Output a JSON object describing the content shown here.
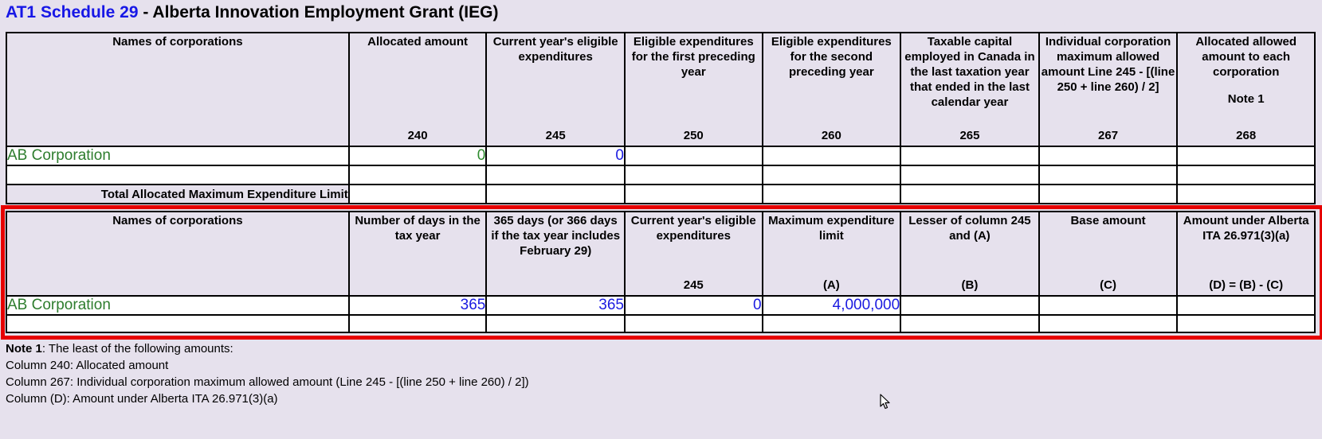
{
  "title": {
    "prefix": "AT1 Schedule 29",
    "suffix": " - Alberta Innovation Employment Grant (IEG)"
  },
  "table1": {
    "headers": [
      {
        "label": "Names of corporations",
        "code": ""
      },
      {
        "label": "Allocated amount",
        "code": "240"
      },
      {
        "label": "Current year's eligible expenditures",
        "code": "245"
      },
      {
        "label": "Eligible expenditures for the first preceding year",
        "code": "250"
      },
      {
        "label": "Eligible expenditures for the second preceding year",
        "code": "260"
      },
      {
        "label": "Taxable capital employed in Canada in the last taxation year that ended in the last calendar year",
        "code": "265"
      },
      {
        "label": "Individual corporation maximum allowed amount Line 245 - [(line 250 + line 260) / 2]",
        "code": "267"
      },
      {
        "label": "Allocated allowed amount to each corporation",
        "note": "Note 1",
        "code": "268"
      }
    ],
    "rows": [
      {
        "name": "AB Corporation",
        "allocated_amount": "0",
        "current_year_expenditures": "0"
      }
    ],
    "total_label": "Total Allocated Maximum Expenditure Limit"
  },
  "table2": {
    "headers": [
      {
        "label": "Names of corporations",
        "code": ""
      },
      {
        "label": "Number of days in the tax year",
        "code": ""
      },
      {
        "label": "365 days (or 366 days if the tax year includes February 29)",
        "code": ""
      },
      {
        "label": "Current year's eligible expenditures",
        "code": "245"
      },
      {
        "label": "Maximum expenditure limit",
        "code": "(A)"
      },
      {
        "label": "Lesser of column 245 and (A)",
        "code": "(B)"
      },
      {
        "label": "Base amount",
        "code": "(C)"
      },
      {
        "label": "Amount under Alberta ITA 26.971(3)(a)",
        "code": "(D) = (B) - (C)"
      }
    ],
    "rows": [
      {
        "name": "AB Corporation",
        "days_in_year": "365",
        "days_365_366": "365",
        "current_year_expenditures": "0",
        "max_expenditure_limit": "4,000,000"
      }
    ]
  },
  "notes": {
    "note1_label": "Note 1",
    "note1_text": ": The least of the following amounts:",
    "line1": "Column 240: Allocated amount",
    "line2": "Column 267: Individual corporation maximum allowed amount (Line 245 - [(line 250 + line 260) / 2])",
    "line3": "Column (D): Amount under Alberta ITA 26.971(3)(a)"
  },
  "colors": {
    "background": "#e6e1ed",
    "title_blue": "#1717e6",
    "name_green": "#2e7d2e",
    "value_blue": "#1a1ae0",
    "highlight_red": "#e60000"
  }
}
